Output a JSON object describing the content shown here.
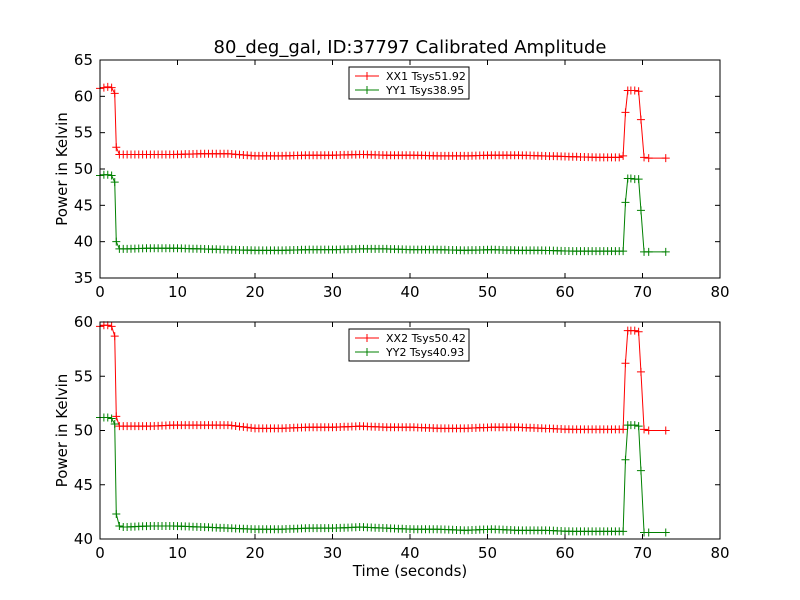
{
  "figure": {
    "title": "80_deg_gal, ID:37797 Calibrated Amplitude",
    "xlabel": "Time (seconds)"
  },
  "colors": {
    "xx": "#ff0000",
    "yy": "#008000"
  },
  "chart_data": [
    {
      "type": "line",
      "title": "80_deg_gal, ID:37797 Calibrated Amplitude",
      "xlabel": "",
      "ylabel": "Power in Kelvin",
      "xlim": [
        0,
        80
      ],
      "ylim": [
        35,
        65
      ],
      "xticks": [
        "0",
        "10",
        "20",
        "30",
        "40",
        "50",
        "60",
        "70",
        "80"
      ],
      "yticks": [
        "35",
        "40",
        "45",
        "50",
        "55",
        "60",
        "65"
      ],
      "grid": false,
      "legend_position": "top-center",
      "series": [
        {
          "name": "XX1 Tsys51.92",
          "color": "#ff0000",
          "x": [
            0,
            0.5,
            1,
            1.5,
            1.9,
            2.1,
            2.5,
            3,
            67.5,
            67.8,
            68.1,
            68.5,
            69,
            69.5,
            69.8,
            70.2,
            70.8,
            73
          ],
          "y": [
            61.1,
            61.2,
            61.3,
            61.2,
            60.4,
            53.0,
            52.0,
            52.0,
            51.8,
            57.8,
            60.8,
            60.8,
            60.8,
            60.7,
            56.8,
            51.6,
            51.5,
            51.5
          ],
          "flat_segments": [
            {
              "x_from": 3,
              "x_to": 67.5,
              "y": [
                52.0,
                52.0,
                52.0,
                52.1,
                52.1,
                51.8,
                51.8,
                51.9,
                51.9,
                52.0,
                51.9,
                51.9,
                51.8,
                51.8,
                51.9,
                51.9,
                51.8,
                51.7,
                51.6,
                51.6
              ]
            }
          ]
        },
        {
          "name": "YY1 Tsys38.95",
          "color": "#008000",
          "x": [
            0,
            0.5,
            1,
            1.5,
            1.9,
            2.1,
            2.5,
            3,
            67.5,
            67.8,
            68.1,
            68.5,
            69,
            69.5,
            69.8,
            70.2,
            70.8,
            73
          ],
          "y": [
            49.1,
            49.2,
            49.2,
            49.1,
            48.2,
            40.0,
            39.0,
            39.0,
            38.7,
            45.4,
            48.7,
            48.7,
            48.6,
            48.6,
            44.3,
            38.6,
            38.6,
            38.6
          ],
          "flat_segments": [
            {
              "x_from": 3,
              "x_to": 67.5,
              "y": [
                39.0,
                39.1,
                39.1,
                39.0,
                38.9,
                38.8,
                38.8,
                38.9,
                38.9,
                39.0,
                39.0,
                38.9,
                38.9,
                38.8,
                38.9,
                38.8,
                38.8,
                38.7,
                38.7,
                38.7
              ]
            }
          ]
        }
      ]
    },
    {
      "type": "line",
      "title": "",
      "xlabel": "Time (seconds)",
      "ylabel": "Power in Kelvin",
      "xlim": [
        0,
        80
      ],
      "ylim": [
        40,
        60
      ],
      "xticks": [
        "0",
        "10",
        "20",
        "30",
        "40",
        "50",
        "60",
        "70",
        "80"
      ],
      "yticks": [
        "40",
        "45",
        "50",
        "55",
        "60"
      ],
      "grid": false,
      "legend_position": "top-center",
      "series": [
        {
          "name": "XX2 Tsys50.42",
          "color": "#ff0000",
          "x": [
            0,
            0.5,
            1,
            1.5,
            1.9,
            2.1,
            2.5,
            3,
            67.5,
            67.8,
            68.1,
            68.5,
            69,
            69.5,
            69.8,
            70.2,
            70.8,
            73
          ],
          "y": [
            59.6,
            59.7,
            59.7,
            59.6,
            58.7,
            51.3,
            50.4,
            50.4,
            50.1,
            56.2,
            59.2,
            59.2,
            59.2,
            59.1,
            55.4,
            50.1,
            50.0,
            50.0
          ],
          "flat_segments": [
            {
              "x_from": 3,
              "x_to": 67.5,
              "y": [
                50.4,
                50.4,
                50.5,
                50.5,
                50.5,
                50.2,
                50.2,
                50.3,
                50.3,
                50.4,
                50.3,
                50.3,
                50.2,
                50.2,
                50.3,
                50.3,
                50.2,
                50.1,
                50.1,
                50.1
              ]
            }
          ]
        },
        {
          "name": "YY2 Tsys40.93",
          "color": "#008000",
          "x": [
            0,
            0.5,
            1,
            1.5,
            1.9,
            2.1,
            2.5,
            3,
            67.5,
            67.8,
            68.1,
            68.5,
            69,
            69.5,
            69.8,
            70.2,
            70.8,
            73
          ],
          "y": [
            51.2,
            51.2,
            51.2,
            51.1,
            50.6,
            42.3,
            41.2,
            41.1,
            40.7,
            47.3,
            50.5,
            50.5,
            50.5,
            50.4,
            46.3,
            40.6,
            40.6,
            40.6
          ],
          "flat_segments": [
            {
              "x_from": 3,
              "x_to": 67.5,
              "y": [
                41.1,
                41.2,
                41.2,
                41.1,
                41.0,
                40.9,
                40.9,
                41.0,
                41.0,
                41.1,
                41.0,
                40.9,
                40.9,
                40.8,
                40.9,
                40.8,
                40.8,
                40.7,
                40.7,
                40.7
              ]
            }
          ]
        }
      ]
    }
  ]
}
